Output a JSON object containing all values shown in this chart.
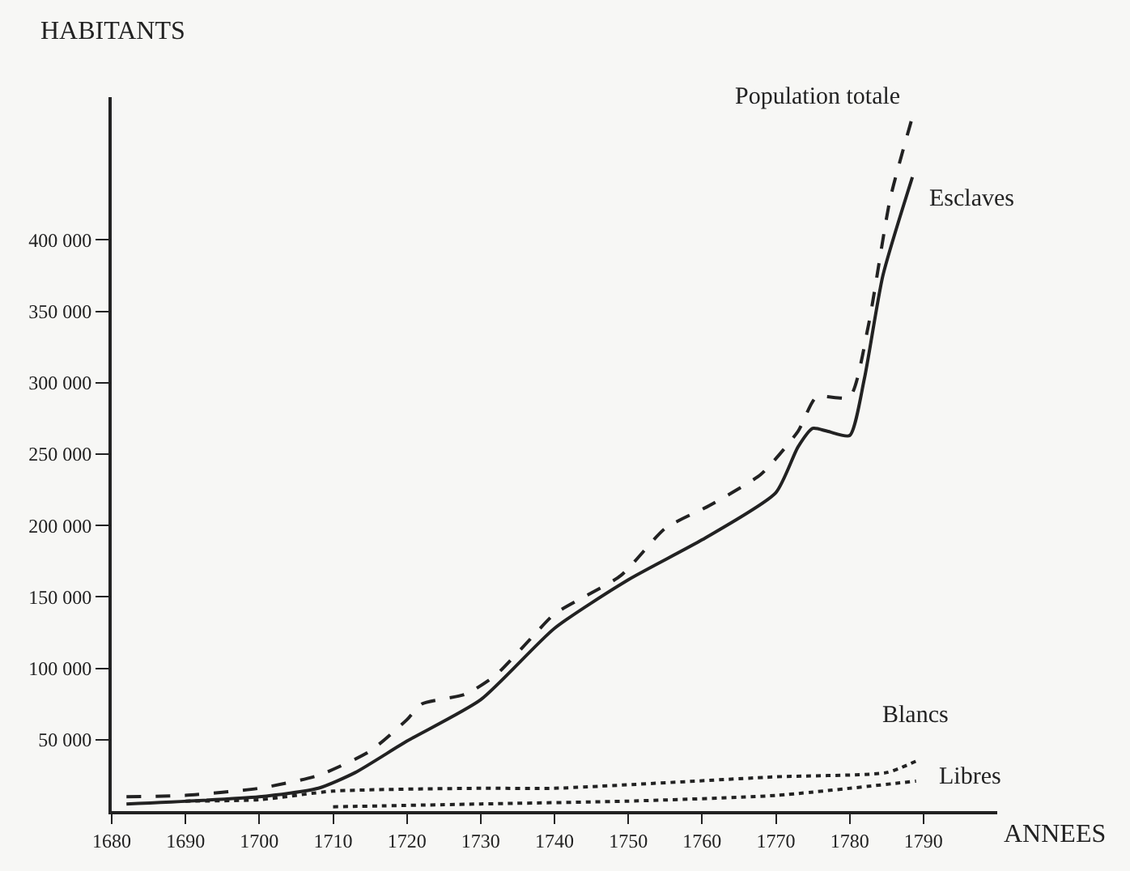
{
  "chart_data": {
    "type": "line",
    "xlabel": "ANNEES",
    "ylabel": "HABITANTS",
    "xlim": [
      1680,
      1800
    ],
    "xticks": [
      1680,
      1690,
      1700,
      1710,
      1720,
      1730,
      1740,
      1750,
      1760,
      1770,
      1780,
      1790
    ],
    "ylim": [
      0,
      500000
    ],
    "yticks": [
      {
        "value": 50000,
        "label": "50 000"
      },
      {
        "value": 100000,
        "label": "100 000"
      },
      {
        "value": 150000,
        "label": "150 000"
      },
      {
        "value": 200000,
        "label": "200 000"
      },
      {
        "value": 250000,
        "label": "250 000"
      },
      {
        "value": 300000,
        "label": "300 000"
      },
      {
        "value": 350000,
        "label": "350 000"
      },
      {
        "value": 400000,
        "label": "400 000"
      }
    ],
    "grid": false,
    "legend": false,
    "marker": "none",
    "series": [
      {
        "name": "Population totale",
        "color": "#222222",
        "line_style": "dashed",
        "x": [
          1682,
          1690,
          1700,
          1708,
          1715,
          1720,
          1722,
          1728,
          1732,
          1737,
          1740,
          1749,
          1755,
          1761,
          1768,
          1773,
          1775.5,
          1780,
          1782.5,
          1785.5,
          1788.5
        ],
        "values": [
          10000,
          11000,
          16000,
          25000,
          42000,
          64000,
          75000,
          82000,
          95000,
          122000,
          138000,
          165000,
          198000,
          214000,
          236000,
          266000,
          290000,
          290000,
          339000,
          429000,
          486000
        ]
      },
      {
        "name": "Esclaves",
        "color": "#222222",
        "line_style": "solid",
        "x": [
          1682,
          1700,
          1708,
          1713,
          1720,
          1730,
          1740,
          1750,
          1760,
          1770,
          1773,
          1775,
          1777,
          1780,
          1782,
          1784.5,
          1788.5
        ],
        "values": [
          5000,
          10000,
          16000,
          27000,
          49000,
          78000,
          128000,
          162000,
          190000,
          223000,
          255000,
          268000,
          266000,
          263000,
          303000,
          375000,
          444000
        ]
      },
      {
        "name": "Blancs",
        "color": "#222222",
        "line_style": "dotted",
        "x": [
          1690,
          1700,
          1710,
          1730,
          1740,
          1770,
          1785,
          1789
        ],
        "values": [
          7000,
          8000,
          14000,
          16000,
          16000,
          24000,
          27000,
          35000
        ]
      },
      {
        "name": "Libres",
        "color": "#222222",
        "line_style": "dotted",
        "x": [
          1710,
          1730,
          1750,
          1770,
          1789
        ],
        "values": [
          3000,
          5000,
          7000,
          11000,
          21000
        ]
      }
    ]
  }
}
